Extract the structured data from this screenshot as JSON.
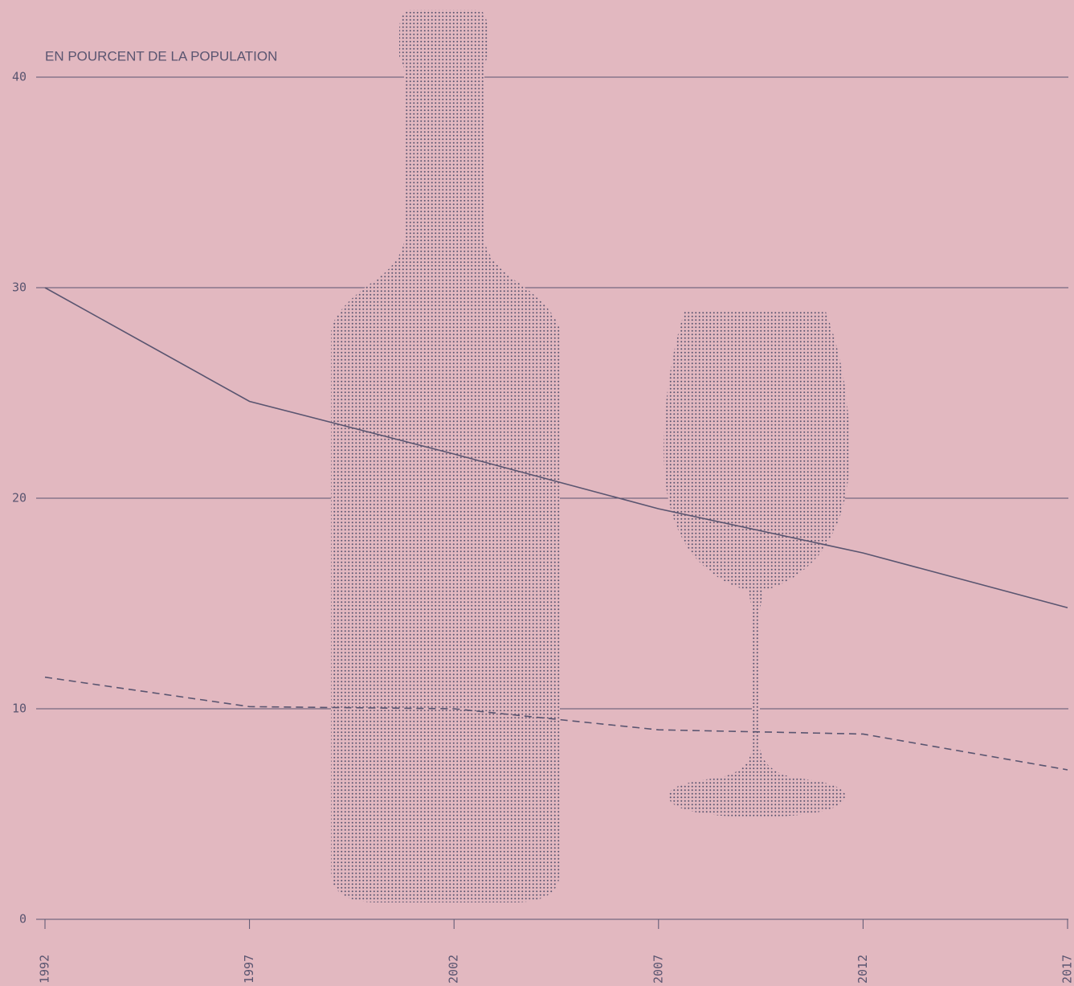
{
  "chart_data": {
    "type": "line",
    "y_axis_label": "EN POURCENT DE LA POPULATION",
    "x": [
      1992,
      1997,
      2002,
      2007,
      2012,
      2017
    ],
    "series": [
      {
        "color": "#5a5570",
        "dash": "solid",
        "values": [
          30,
          24.6,
          22.1,
          19.5,
          17.4,
          14.8
        ]
      },
      {
        "color": "#5a5570",
        "dash": "dashed",
        "values": [
          11.5,
          10.1,
          10.0,
          9.0,
          8.8,
          7.1
        ]
      }
    ],
    "xlim": [
      1992,
      2017
    ],
    "xticks": [
      1992,
      1997,
      2002,
      2007,
      2012,
      2017
    ],
    "ylim": [
      0,
      40
    ],
    "yticks": [
      0,
      10,
      20,
      30,
      40
    ],
    "grid": true
  }
}
